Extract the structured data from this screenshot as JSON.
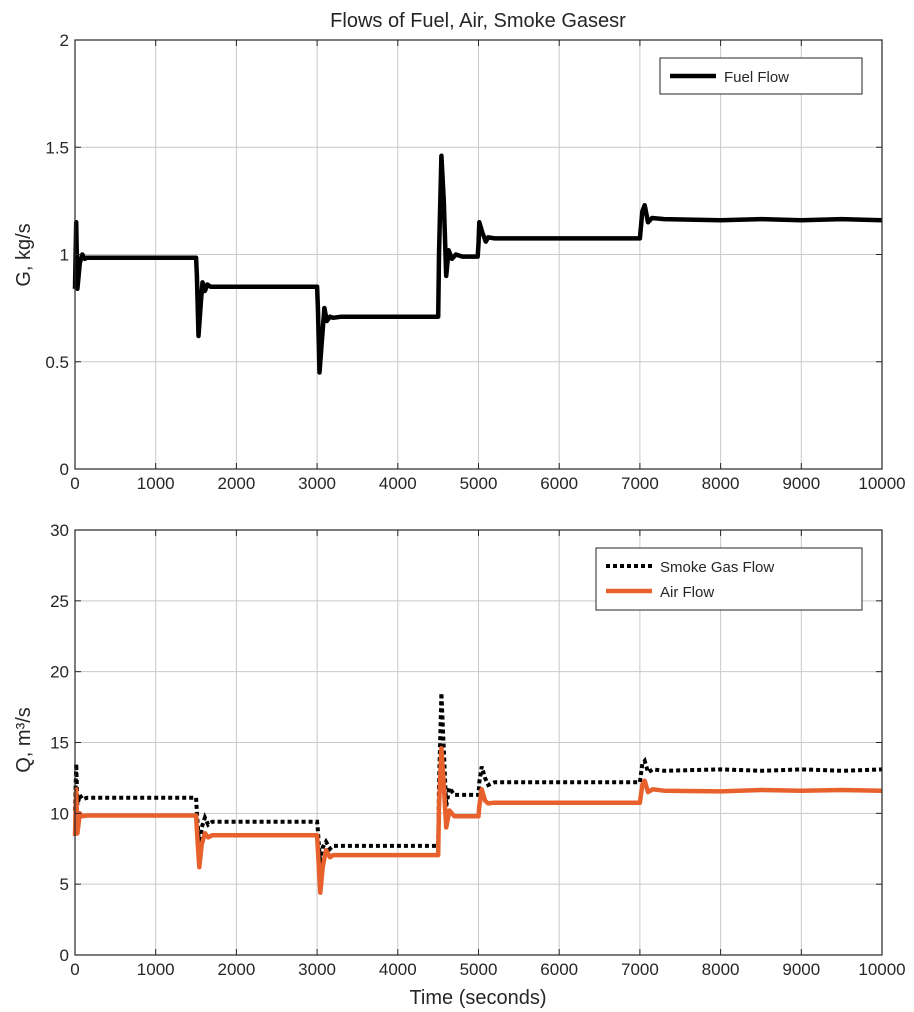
{
  "colors": {
    "fuel": "#000000",
    "smoke": "#000000",
    "air": "#E8612C",
    "grid": "#c9c9c9",
    "axis": "#262626"
  },
  "chart_data": [
    {
      "type": "line",
      "title": "Flows of Fuel, Air, Smoke Gasesr",
      "xlabel": "",
      "ylabel": "G, kg/s",
      "xlim": [
        0,
        10000
      ],
      "ylim": [
        0,
        2
      ],
      "xticks": [
        0,
        1000,
        2000,
        3000,
        4000,
        5000,
        6000,
        7000,
        8000,
        9000,
        10000
      ],
      "yticks": [
        0,
        0.5,
        1,
        1.5,
        2
      ],
      "xtick_labels": [
        "0",
        "1000",
        "2000",
        "3000",
        "4000",
        "5000",
        "6000",
        "7000",
        "8000",
        "9000",
        "10000"
      ],
      "ytick_labels": [
        "0",
        "0.5",
        "1",
        "1.5",
        "2"
      ],
      "grid": true,
      "legend_position": "top-right",
      "series": [
        {
          "name": "Fuel Flow",
          "style": "solid",
          "color": "#000000",
          "x": [
            0,
            15,
            30,
            60,
            90,
            120,
            150,
            300,
            1500,
            1510,
            1530,
            1560,
            1580,
            1610,
            1640,
            1680,
            1800,
            3000,
            3010,
            3030,
            3060,
            3090,
            3120,
            3160,
            3200,
            3300,
            4500,
            4510,
            4540,
            4570,
            4600,
            4630,
            4670,
            4720,
            4800,
            4990,
            5000,
            5010,
            5050,
            5090,
            5120,
            5200,
            5500,
            7000,
            7030,
            7060,
            7100,
            7150,
            7300,
            8000,
            8500,
            9000,
            9500,
            10000
          ],
          "y": [
            0.84,
            1.15,
            0.84,
            0.96,
            1.0,
            0.98,
            0.985,
            0.985,
            0.985,
            0.9,
            0.62,
            0.78,
            0.87,
            0.83,
            0.86,
            0.85,
            0.85,
            0.85,
            0.75,
            0.45,
            0.6,
            0.75,
            0.69,
            0.71,
            0.705,
            0.71,
            0.71,
            1.0,
            1.46,
            1.25,
            0.9,
            1.02,
            0.98,
            1.0,
            0.99,
            0.99,
            1.05,
            1.15,
            1.1,
            1.06,
            1.08,
            1.075,
            1.075,
            1.075,
            1.2,
            1.23,
            1.15,
            1.17,
            1.165,
            1.16,
            1.165,
            1.16,
            1.165,
            1.16
          ]
        }
      ]
    },
    {
      "type": "line",
      "title": "",
      "xlabel": "Time (seconds)",
      "ylabel": "Q, m³/s",
      "xlim": [
        0,
        10000
      ],
      "ylim": [
        0,
        30
      ],
      "xticks": [
        0,
        1000,
        2000,
        3000,
        4000,
        5000,
        6000,
        7000,
        8000,
        9000,
        10000
      ],
      "yticks": [
        0,
        5,
        10,
        15,
        20,
        25,
        30
      ],
      "xtick_labels": [
        "0",
        "1000",
        "2000",
        "3000",
        "4000",
        "5000",
        "6000",
        "7000",
        "8000",
        "9000",
        "10000"
      ],
      "ytick_labels": [
        "0",
        "5",
        "10",
        "15",
        "20",
        "25",
        "30"
      ],
      "grid": true,
      "legend_position": "top-right",
      "series": [
        {
          "name": "Smoke Gas Flow",
          "style": "dotted",
          "color": "#000000",
          "x": [
            0,
            15,
            30,
            60,
            90,
            150,
            300,
            1500,
            1510,
            1540,
            1570,
            1610,
            1650,
            1700,
            3000,
            3010,
            3040,
            3070,
            3110,
            3160,
            3200,
            4500,
            4510,
            4540,
            4570,
            4600,
            4640,
            4700,
            5000,
            5010,
            5040,
            5080,
            5120,
            5200,
            7000,
            7030,
            7060,
            7100,
            7160,
            7300,
            8000,
            8500,
            9000,
            9500,
            10000
          ],
          "y": [
            10.2,
            13.5,
            10.6,
            11.3,
            11.0,
            11.1,
            11.1,
            11.1,
            10.0,
            7.6,
            9.0,
            9.7,
            9.2,
            9.4,
            9.4,
            8.8,
            6.3,
            7.6,
            8.0,
            7.5,
            7.7,
            7.7,
            12.0,
            18.5,
            14.5,
            10.5,
            11.8,
            11.3,
            11.3,
            12.2,
            13.3,
            12.5,
            12.0,
            12.2,
            12.2,
            13.5,
            13.7,
            12.9,
            13.1,
            13.0,
            13.1,
            13.0,
            13.1,
            13.0,
            13.1
          ]
        },
        {
          "name": "Air Flow",
          "style": "solid",
          "color": "#E8612C",
          "x": [
            0,
            15,
            30,
            60,
            90,
            150,
            300,
            1500,
            1510,
            1540,
            1570,
            1610,
            1650,
            1700,
            3000,
            3010,
            3040,
            3070,
            3110,
            3160,
            3200,
            4500,
            4510,
            4540,
            4570,
            4600,
            4640,
            4700,
            5000,
            5010,
            5040,
            5080,
            5120,
            5200,
            7000,
            7030,
            7060,
            7100,
            7160,
            7300,
            8000,
            8500,
            9000,
            9500,
            10000
          ],
          "y": [
            8.4,
            11.7,
            8.6,
            10.0,
            9.8,
            9.85,
            9.85,
            9.85,
            8.8,
            6.2,
            7.8,
            8.6,
            8.3,
            8.45,
            8.45,
            7.4,
            4.4,
            6.2,
            7.4,
            6.9,
            7.05,
            7.05,
            10.5,
            14.6,
            12.0,
            9.0,
            10.2,
            9.8,
            9.8,
            10.5,
            11.7,
            10.9,
            10.7,
            10.75,
            10.75,
            12.0,
            12.3,
            11.5,
            11.7,
            11.6,
            11.55,
            11.65,
            11.6,
            11.65,
            11.6
          ]
        }
      ]
    }
  ]
}
